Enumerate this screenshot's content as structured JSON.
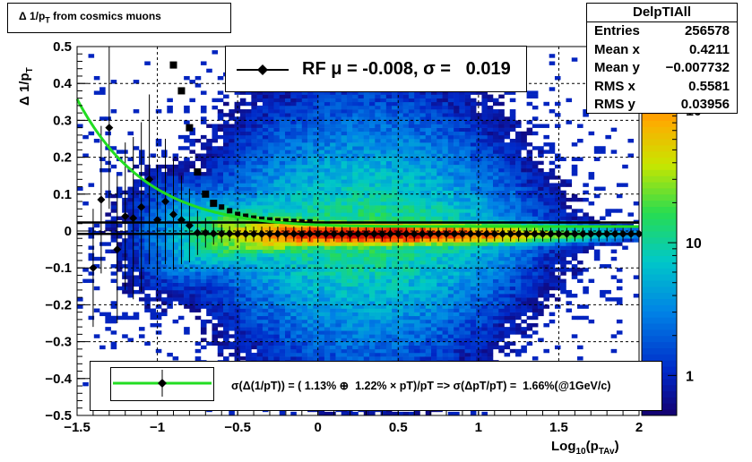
{
  "title": "Δ 1/p",
  "title_sub": "T",
  "title_suffix": " from cosmics muons",
  "stats": {
    "name": "DelpTIAll",
    "rows": [
      {
        "label": "Entries",
        "value": "256578"
      },
      {
        "label": "Mean x",
        "value": "0.4211"
      },
      {
        "label": "Mean y",
        "value": "−0.007732"
      },
      {
        "label": "RMS x",
        "value": "0.5581"
      },
      {
        "label": "RMS y",
        "value": "0.03956"
      }
    ]
  },
  "rf_legend": "RF μ = -0.008, σ =   0.019",
  "fit_legend": "σ(Δ(1/pT)) = ( 1.13% ⊕  1.22% × pT)/pT => σ(ΔpT/pT) =  1.66%(@1GeV/c)",
  "colors": {
    "fit_curve": "#22dd22",
    "mean_markers": "#000000",
    "rms_markers": "#000000"
  },
  "chart_data": {
    "type": "heatmap",
    "xlabel_main": "Log",
    "xlabel_sub1": "10",
    "xlabel_mid": "(p",
    "xlabel_sub2": "TAv",
    "xlabel_end": ")",
    "ylabel_main": "Δ 1/p",
    "ylabel_sub": "T",
    "xlim": [
      -1.5,
      2.0
    ],
    "ylim": [
      -0.5,
      0.5
    ],
    "x_ticks": [
      -1.5,
      -1,
      -0.5,
      0,
      0.5,
      1,
      1.5,
      2
    ],
    "x_tick_labels": [
      "−1.5",
      "−1",
      "−0.5",
      "0",
      "0.5",
      "1",
      "1.5",
      "2"
    ],
    "y_ticks": [
      -0.5,
      -0.4,
      -0.3,
      -0.2,
      -0.1,
      0,
      0.1,
      0.2,
      0.3,
      0.4,
      0.5
    ],
    "y_tick_labels": [
      "−0.5",
      "−0.4",
      "−0.3",
      "−0.2",
      "−0.1",
      "0",
      "0.1",
      "0.2",
      "0.3",
      "0.4",
      "0.5"
    ],
    "z_scale": "log",
    "z_range": [
      0.5,
      300
    ],
    "z_tick_labels": [
      {
        "value": 1,
        "label": "1"
      },
      {
        "value": 10,
        "label": "10"
      },
      {
        "value": 100,
        "label": "10",
        "sup": "2"
      }
    ],
    "grid": true,
    "mean_points": {
      "name": "RF",
      "marker": "diamond",
      "x": [
        -1.4,
        -1.35,
        -1.3,
        -1.25,
        -1.2,
        -1.15,
        -1.1,
        -1.05,
        -1.0,
        -0.95,
        -0.9,
        -0.85,
        -0.8,
        -0.75,
        -0.7,
        -0.65,
        -0.6,
        -0.55,
        -0.5,
        -0.45,
        -0.4,
        -0.35,
        -0.3,
        -0.25,
        -0.2,
        -0.15,
        -0.1,
        -0.05,
        0.0,
        0.05,
        0.1,
        0.15,
        0.2,
        0.25,
        0.3,
        0.35,
        0.4,
        0.45,
        0.5,
        0.55,
        0.6,
        0.65,
        0.7,
        0.75,
        0.8,
        0.85,
        0.9,
        0.95,
        1.0,
        1.05,
        1.1,
        1.15,
        1.2,
        1.25,
        1.3,
        1.35,
        1.4,
        1.45,
        1.5,
        1.55,
        1.6,
        1.65,
        1.7,
        1.75,
        1.8,
        1.85,
        1.9,
        1.95,
        2.0
      ],
      "y": [
        -0.1,
        0.085,
        0.28,
        -0.05,
        0.04,
        0.035,
        0.065,
        0.14,
        0.03,
        0.08,
        0.045,
        0.03,
        0.015,
        -0.005,
        -0.005,
        -0.007,
        -0.007,
        -0.007,
        -0.008,
        -0.008,
        -0.008,
        -0.008,
        -0.008,
        -0.008,
        -0.008,
        -0.008,
        -0.008,
        -0.008,
        -0.008,
        -0.008,
        -0.008,
        -0.008,
        -0.008,
        -0.008,
        -0.008,
        -0.008,
        -0.008,
        -0.008,
        -0.008,
        -0.008,
        -0.008,
        -0.008,
        -0.008,
        -0.008,
        -0.008,
        -0.008,
        -0.008,
        -0.008,
        -0.008,
        -0.008,
        -0.008,
        -0.008,
        -0.008,
        -0.008,
        -0.008,
        -0.008,
        -0.008,
        -0.008,
        -0.008,
        -0.008,
        -0.008,
        -0.008,
        -0.008,
        -0.008,
        -0.008,
        -0.008,
        -0.008,
        -0.008,
        -0.008
      ],
      "yerr": [
        0.16,
        0.2,
        0.22,
        0.2,
        0.2,
        0.22,
        0.23,
        0.23,
        0.15,
        0.17,
        0.15,
        0.12,
        0.1,
        0.06,
        0.04,
        0.03,
        0.025,
        0.02,
        0.02,
        0.02,
        0.02,
        0.02,
        0.02,
        0.02,
        0.02,
        0.02,
        0.02,
        0.02,
        0.02,
        0.02,
        0.02,
        0.02,
        0.02,
        0.02,
        0.02,
        0.02,
        0.02,
        0.02,
        0.02,
        0.02,
        0.02,
        0.02,
        0.02,
        0.02,
        0.02,
        0.02,
        0.02,
        0.02,
        0.02,
        0.02,
        0.02,
        0.02,
        0.02,
        0.02,
        0.02,
        0.02,
        0.02,
        0.02,
        0.02,
        0.02,
        0.02,
        0.02,
        0.02,
        0.02,
        0.02,
        0.02,
        0.02,
        0.02,
        0.02
      ]
    },
    "rms_points": {
      "marker": "square",
      "x": [
        -0.9,
        -0.85,
        -0.8,
        -0.75,
        -0.7,
        -0.65,
        -0.6,
        -0.55,
        -0.5,
        -0.45,
        -0.4,
        -0.35,
        -0.3,
        -0.25,
        -0.2,
        -0.15,
        -0.1,
        -0.05
      ],
      "y": [
        0.45,
        0.38,
        0.28,
        0.16,
        0.1,
        0.075,
        0.065,
        0.055,
        0.045,
        0.04,
        0.035,
        0.032,
        0.03,
        0.028,
        0.027,
        0.026,
        0.025,
        0.025
      ]
    },
    "fit": {
      "description_free": true,
      "a": 0.0113,
      "b": 0.0122,
      "x_range": [
        -1.5,
        2.0
      ]
    },
    "ref_lines": [
      {
        "y": 0.023,
        "x_range": [
          -1.5,
          2.0
        ]
      },
      {
        "y": -0.008,
        "x_range": [
          -1.5,
          2.0
        ]
      }
    ]
  }
}
